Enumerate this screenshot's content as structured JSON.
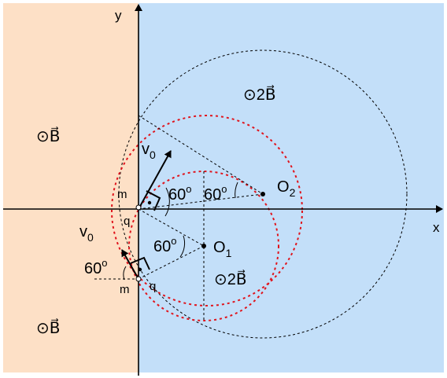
{
  "colors": {
    "left_region": "#fde0c6",
    "right_region": "#c3dff9",
    "axis": "#000000",
    "big_circle": "#000000",
    "red_circles": "#e0141c"
  },
  "labels": {
    "x_axis": "x",
    "y_axis": "y",
    "field_left_top": "⊙B⃗",
    "field_left_bottom": "⊙B⃗",
    "field_right_top": "⊙2B⃗",
    "field_right_mid": "⊙2B⃗",
    "v0_upper": "v",
    "v0_upper_sub": "0",
    "v0_lower": "v",
    "v0_lower_sub": "0",
    "m_upper": "m",
    "q_upper": "q",
    "m_lower": "m",
    "q_lower": "q",
    "o1": "O",
    "o1_sub": "1",
    "o2": "O",
    "o2_sub": "2",
    "angle_a": "60",
    "angle_b": "60",
    "angle_c": "60",
    "angle_d": "60",
    "degree": "o"
  },
  "icons": {
    "field_symbol": "circle-dot-icon",
    "right_angle": "right-angle-marker-icon"
  }
}
